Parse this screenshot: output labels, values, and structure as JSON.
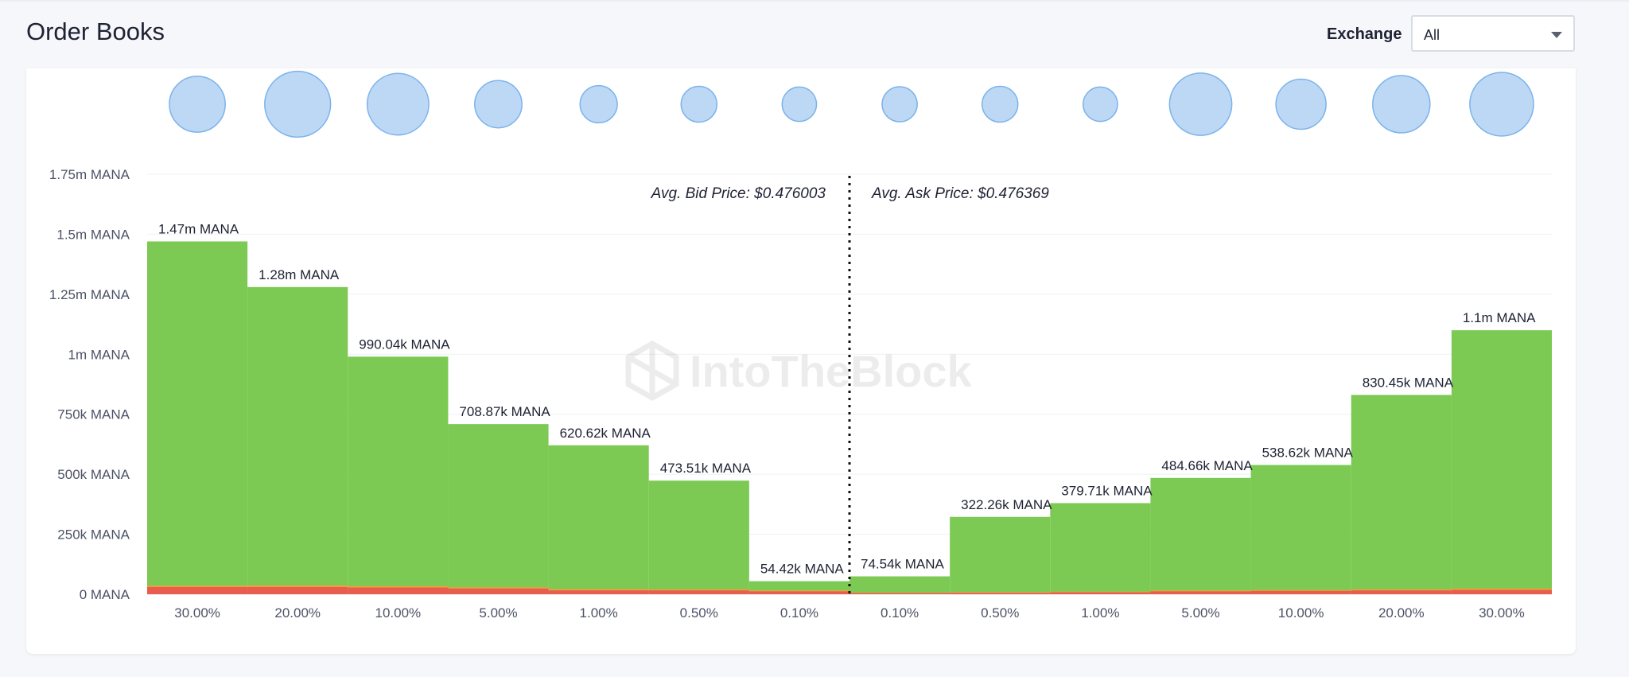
{
  "page": {
    "title": "Order Books"
  },
  "filter": {
    "label": "Exchange",
    "selected": "All"
  },
  "watermark": "IntoTheBlock",
  "colors": {
    "volume": "#7cc954",
    "low": "#e85d4e",
    "mid": "#f2a03a",
    "bubble_fill": "#bcd8f5",
    "bubble_stroke": "#7db3ea",
    "grid": "#eef0f4",
    "divider": "#111111"
  },
  "chart_data": {
    "type": "bar",
    "title": "",
    "ylabel": "",
    "xlabel": "",
    "ylim": [
      0,
      1750000
    ],
    "y_ticks": [
      {
        "value": 0,
        "label": "0 MANA"
      },
      {
        "value": 250000,
        "label": "250k MANA"
      },
      {
        "value": 500000,
        "label": "500k MANA"
      },
      {
        "value": 750000,
        "label": "750k MANA"
      },
      {
        "value": 1000000,
        "label": "1m MANA"
      },
      {
        "value": 1250000,
        "label": "1.25m MANA"
      },
      {
        "value": 1500000,
        "label": "1.5m MANA"
      },
      {
        "value": 1750000,
        "label": "1.75m MANA"
      }
    ],
    "categories": [
      "30.00%",
      "20.00%",
      "10.00%",
      "5.00%",
      "1.00%",
      "0.50%",
      "0.10%",
      "0.10%",
      "0.50%",
      "1.00%",
      "5.00%",
      "10.00%",
      "20.00%",
      "30.00%"
    ],
    "sides": [
      "bid",
      "bid",
      "bid",
      "bid",
      "bid",
      "bid",
      "bid",
      "ask",
      "ask",
      "ask",
      "ask",
      "ask",
      "ask",
      "ask"
    ],
    "values": [
      1470000,
      1280000,
      990040,
      708870,
      620620,
      473510,
      54420,
      74540,
      322260,
      379710,
      484660,
      538620,
      830450,
      1100000
    ],
    "value_labels": [
      "1.47m MANA",
      "1.28m MANA",
      "990.04k MANA",
      "708.87k MANA",
      "620.62k MANA",
      "473.51k MANA",
      "54.42k MANA",
      "74.54k MANA",
      "322.26k MANA",
      "379.71k MANA",
      "484.66k MANA",
      "538.62k MANA",
      "830.45k MANA",
      "1.1m MANA"
    ],
    "low_band": [
      30000,
      30000,
      28000,
      24000,
      16000,
      16000,
      12000,
      5000,
      6000,
      8000,
      12000,
      14000,
      16000,
      18000
    ],
    "mid_band": [
      6000,
      7000,
      6000,
      5000,
      6000,
      5000,
      4000,
      2000,
      3000,
      3000,
      4000,
      4000,
      5000,
      6000
    ],
    "bubbles": [
      0.78,
      0.92,
      0.86,
      0.66,
      0.52,
      0.5,
      0.48,
      0.49,
      0.5,
      0.48,
      0.87,
      0.7,
      0.8,
      0.89
    ],
    "annotations": {
      "avg_bid": "Avg. Bid Price: $0.476003",
      "avg_ask": "Avg. Ask Price: $0.476369"
    }
  }
}
